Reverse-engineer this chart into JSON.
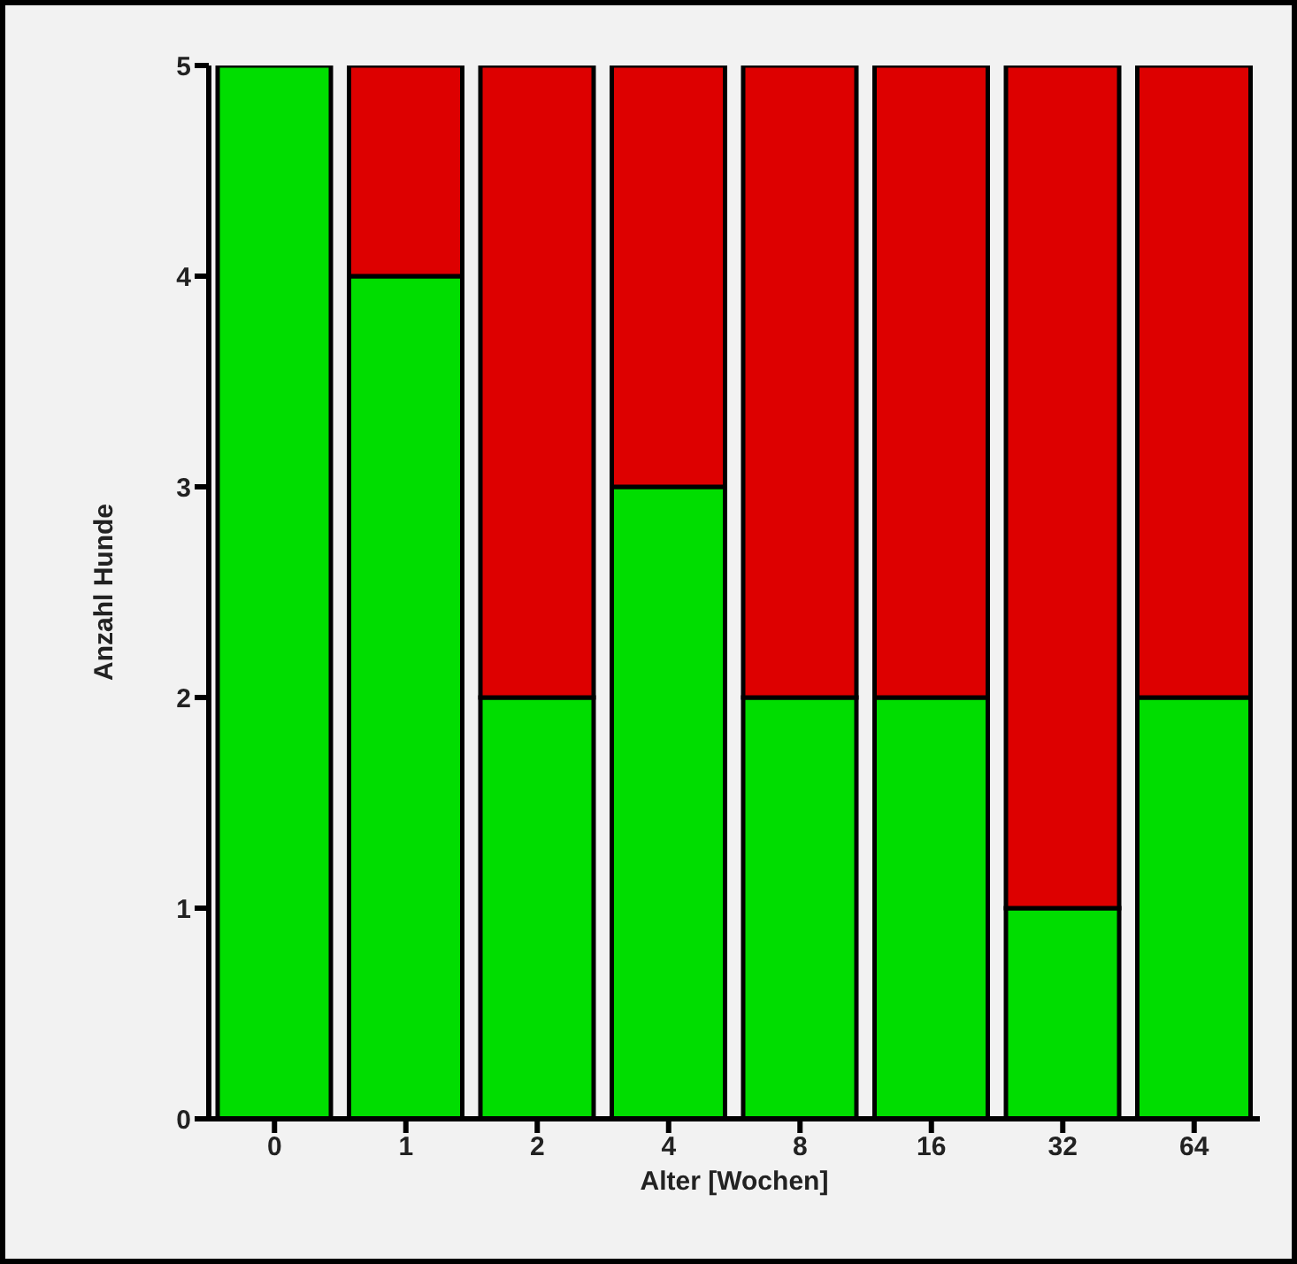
{
  "chart_data": {
    "type": "bar",
    "stacked": true,
    "xlabel": "Alter [Wochen]",
    "ylabel": "Anzahl Hunde",
    "categories": [
      "0",
      "1",
      "2",
      "4",
      "8",
      "16",
      "32",
      "64"
    ],
    "series": [
      {
        "color": "#00dd00",
        "values": [
          5,
          4,
          2,
          3,
          2,
          2,
          1,
          2
        ]
      },
      {
        "color": "#dd0000",
        "values": [
          0,
          1,
          3,
          2,
          3,
          3,
          4,
          3
        ]
      }
    ],
    "ylim": [
      0,
      5
    ],
    "yticks": [
      0,
      1,
      2,
      3,
      4,
      5
    ],
    "grid": false,
    "legend": false
  }
}
